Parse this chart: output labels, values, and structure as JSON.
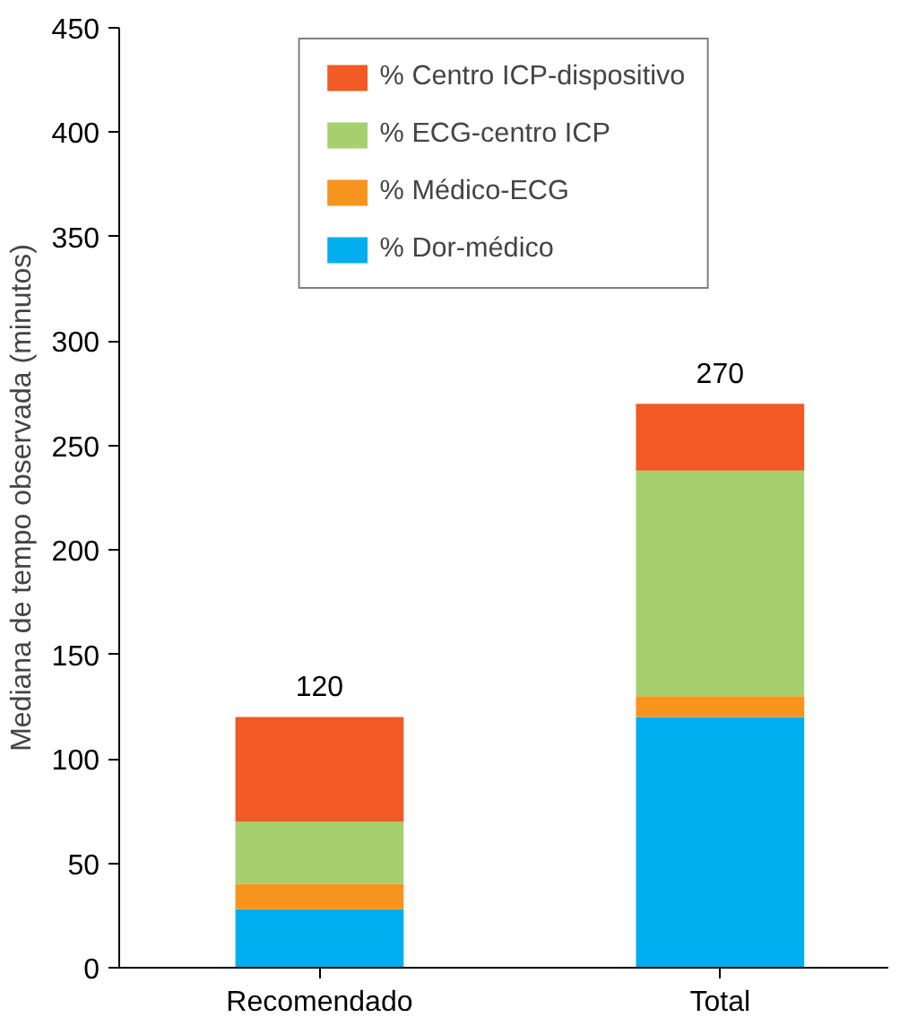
{
  "chart_data": {
    "type": "bar",
    "stacked": true,
    "ylabel": "Mediana de tempo observada (minutos)",
    "categories": [
      "Recomendado",
      "Total"
    ],
    "series": [
      {
        "name": "% Dor-médico",
        "color": "#00aeef",
        "values": [
          28,
          120
        ]
      },
      {
        "name": "% Médico-ECG",
        "color": "#f7941d",
        "values": [
          12,
          10
        ]
      },
      {
        "name": "% ECG-centro ICP",
        "color": "#a6d06e",
        "values": [
          30,
          108
        ]
      },
      {
        "name": "% Centro ICP-dispositivo",
        "color": "#f15a24",
        "values": [
          50,
          32
        ]
      }
    ],
    "totals": [
      "120",
      "270"
    ],
    "ylim": [
      0,
      450
    ],
    "yticks": [
      0,
      50,
      100,
      150,
      200,
      250,
      300,
      350,
      400,
      450
    ],
    "grid": false,
    "legend": "top"
  }
}
